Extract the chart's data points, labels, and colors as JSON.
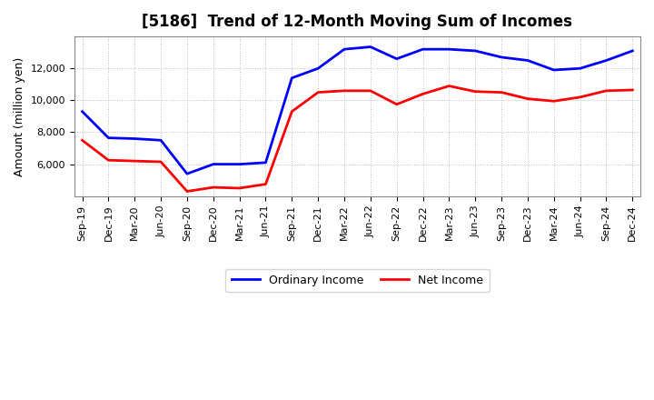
{
  "title": "[5186]  Trend of 12-Month Moving Sum of Incomes",
  "ylabel": "Amount (million yen)",
  "labels": [
    "Sep-19",
    "Dec-19",
    "Mar-20",
    "Jun-20",
    "Sep-20",
    "Dec-20",
    "Mar-21",
    "Jun-21",
    "Sep-21",
    "Dec-21",
    "Mar-22",
    "Jun-22",
    "Sep-22",
    "Dec-22",
    "Mar-23",
    "Jun-23",
    "Sep-23",
    "Dec-23",
    "Mar-24",
    "Jun-24",
    "Sep-24",
    "Dec-24"
  ],
  "ordinary_income": [
    9300,
    7650,
    7600,
    7500,
    5400,
    6000,
    6000,
    6100,
    11400,
    12000,
    13200,
    13350,
    12600,
    13200,
    13200,
    13100,
    12700,
    12500,
    11900,
    12000,
    12500,
    13100
  ],
  "net_income": [
    7500,
    6250,
    6200,
    6150,
    4300,
    4550,
    4500,
    4750,
    9300,
    10500,
    10600,
    10600,
    9750,
    10400,
    10900,
    10550,
    10500,
    10100,
    9950,
    10200,
    10600,
    10650
  ],
  "ordinary_color": "#0000FF",
  "net_color": "#FF0000",
  "ylim_min": 4000,
  "ylim_max": 14000,
  "yticks": [
    6000,
    8000,
    10000,
    12000
  ],
  "background_color": "#FFFFFF",
  "grid_color": "#BBBBBB",
  "title_fontsize": 12,
  "legend_fontsize": 9,
  "ylabel_fontsize": 9,
  "tick_fontsize": 8
}
